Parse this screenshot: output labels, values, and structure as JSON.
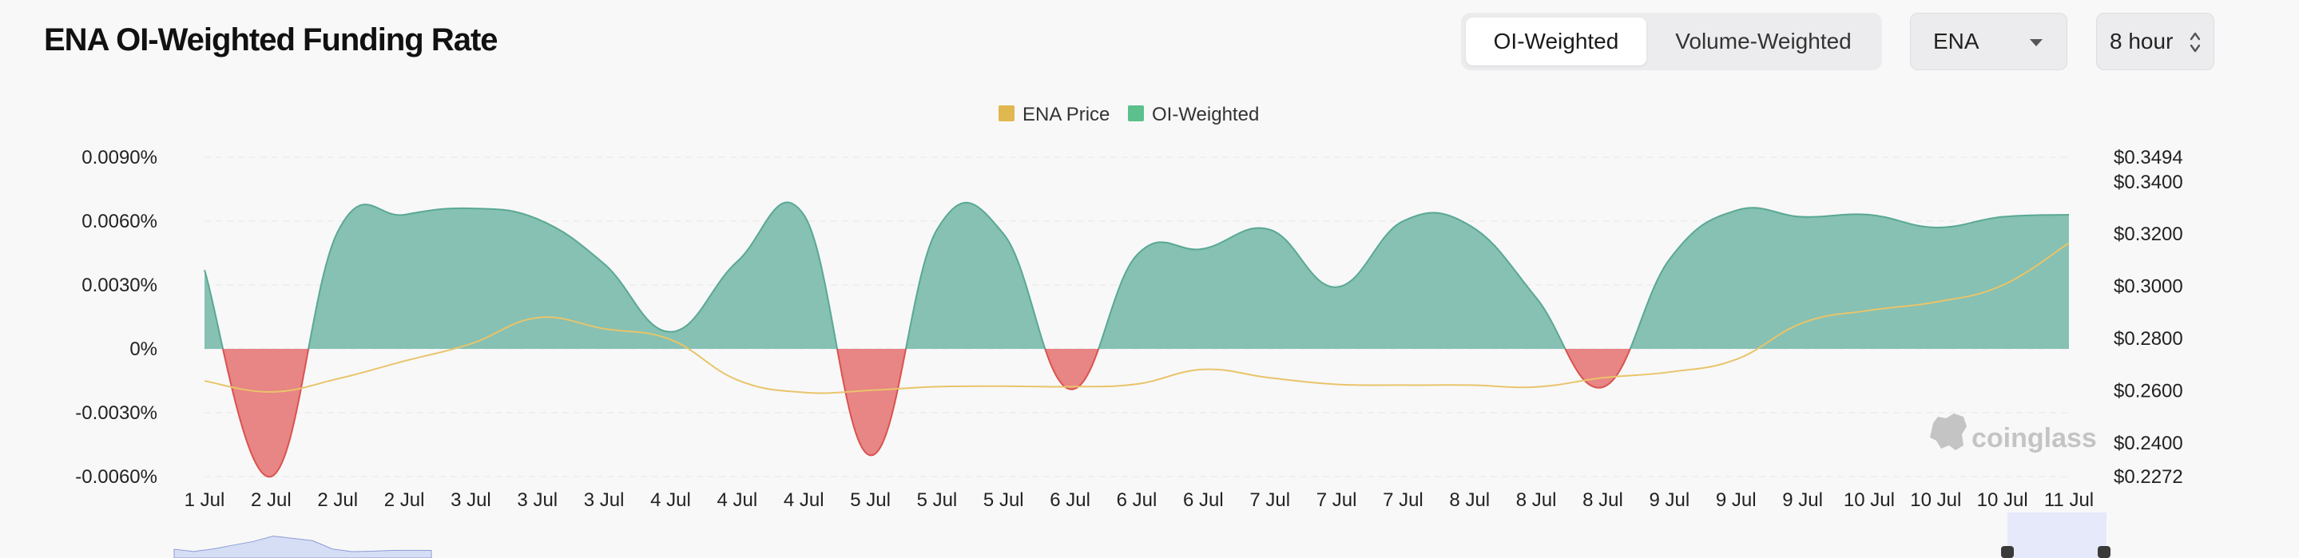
{
  "header": {
    "title": "ENA OI-Weighted Funding Rate",
    "modes": [
      "OI-Weighted",
      "Volume-Weighted"
    ],
    "active_mode": "OI-Weighted",
    "coin": "ENA",
    "interval": "8 hour"
  },
  "colors": {
    "positive_area": "#86c1b3",
    "positive_line": "#5aa894",
    "negative_area": "#e88585",
    "negative_line": "#d9534f",
    "price_line": "#e9c46a",
    "price_legend": "#e0b84f",
    "oi_legend": "#5cc08d",
    "slider_fill": "#d6def5",
    "selection": "#e6e9fa"
  },
  "watermark": "coinglass",
  "chart_data": {
    "type": "area",
    "legend": [
      "ENA Price",
      "OI-Weighted"
    ],
    "x_labels": [
      "1 Jul",
      "2 Jul",
      "2 Jul",
      "2 Jul",
      "3 Jul",
      "3 Jul",
      "3 Jul",
      "4 Jul",
      "4 Jul",
      "4 Jul",
      "5 Jul",
      "5 Jul",
      "5 Jul",
      "6 Jul",
      "6 Jul",
      "6 Jul",
      "7 Jul",
      "7 Jul",
      "7 Jul",
      "8 Jul",
      "8 Jul",
      "8 Jul",
      "9 Jul",
      "9 Jul",
      "9 Jul",
      "10 Jul",
      "10 Jul",
      "10 Jul",
      "11 Jul"
    ],
    "y_left": {
      "ticks": [
        "0.0090%",
        "0.0060%",
        "0.0030%",
        "0%",
        "-0.0030%",
        "-0.0060%"
      ],
      "tick_values": [
        0.009,
        0.006,
        0.003,
        0,
        -0.003,
        -0.006
      ],
      "range": [
        -0.006,
        0.009
      ]
    },
    "y_right": {
      "ticks": [
        "$0.3494",
        "$0.3400",
        "$0.3200",
        "$0.3000",
        "$0.2800",
        "$0.2600",
        "$0.2400",
        "$0.2272"
      ],
      "tick_values": [
        0.3494,
        0.34,
        0.32,
        0.3,
        0.28,
        0.26,
        0.24,
        0.2272
      ],
      "range": [
        0.2272,
        0.3494
      ]
    },
    "series": [
      {
        "name": "OI-Weighted",
        "values": [
          0.0037,
          -0.006,
          0.0055,
          0.0063,
          0.0066,
          0.0061,
          0.004,
          0.0008,
          0.0041,
          0.0063,
          -0.005,
          0.0056,
          0.0054,
          -0.0019,
          0.0044,
          0.0047,
          0.0056,
          0.0029,
          0.006,
          0.0058,
          0.0024,
          -0.0018,
          0.0042,
          0.0065,
          0.0062,
          0.0063,
          0.0057,
          0.0062,
          0.0063
        ]
      },
      {
        "name": "ENA Price",
        "values": [
          0.2638,
          0.2596,
          0.2646,
          0.2714,
          0.278,
          0.288,
          0.2838,
          0.2796,
          0.2642,
          0.2594,
          0.2602,
          0.2616,
          0.2618,
          0.2616,
          0.2626,
          0.2682,
          0.265,
          0.2625,
          0.2622,
          0.2622,
          0.2615,
          0.265,
          0.2672,
          0.272,
          0.286,
          0.2908,
          0.294,
          0.3004,
          0.3166
        ]
      }
    ],
    "grid": true,
    "legend_position": "top-center"
  }
}
